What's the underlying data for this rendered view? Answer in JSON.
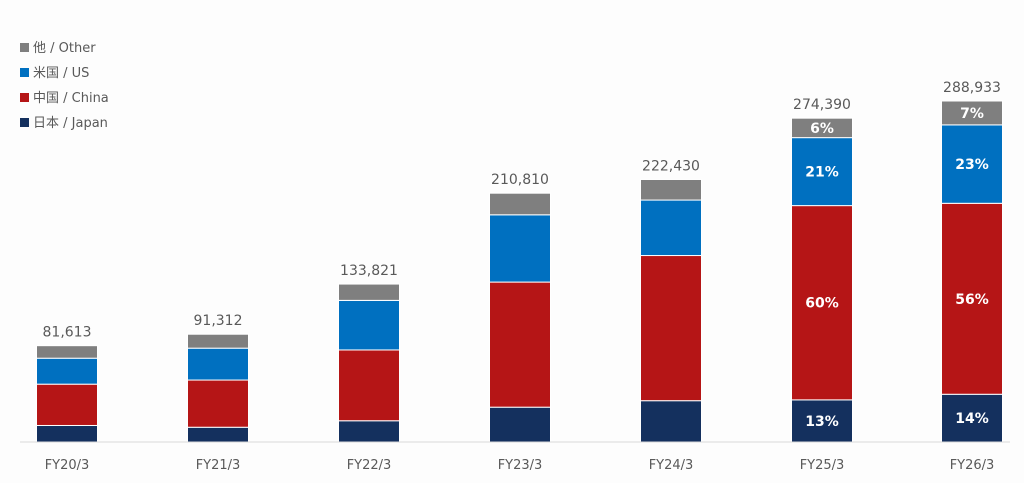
{
  "chart_data": {
    "type": "bar",
    "stacked": true,
    "categories": [
      "FY20/3",
      "FY21/3",
      "FY22/3",
      "FY23/3",
      "FY24/3",
      "FY25/3",
      "FY26/3"
    ],
    "totals": [
      81613,
      91312,
      133821,
      210810,
      222430,
      274390,
      288933
    ],
    "total_labels": [
      "81,613",
      "91,312",
      "133,821",
      "210,810",
      "222,430",
      "274,390",
      "288,933"
    ],
    "series": [
      {
        "name": "日本 / Japan",
        "color": "#14305e",
        "values": [
          14000,
          12500,
          18000,
          29500,
          35000,
          35700,
          40450
        ],
        "data_labels": [
          "",
          "",
          "",
          "",
          "",
          "13%",
          "14%"
        ]
      },
      {
        "name": "中国 / China",
        "color": "#b51516",
        "values": [
          35000,
          40000,
          60000,
          106000,
          123000,
          164600,
          161800
        ],
        "data_labels": [
          "",
          "",
          "",
          "",
          "",
          "60%",
          "56%"
        ]
      },
      {
        "name": "米国 / US",
        "color": "#0070c0",
        "values": [
          22000,
          27000,
          42000,
          57000,
          47000,
          57600,
          66450
        ],
        "data_labels": [
          "",
          "",
          "",
          "",
          "",
          "21%",
          "23%"
        ]
      },
      {
        "name": "他 / Other",
        "color": "#7f7f7f",
        "values": [
          10613,
          11812,
          13821,
          18310,
          17430,
          16490,
          20233
        ],
        "data_labels": [
          "",
          "",
          "",
          "",
          "",
          "6%",
          "7%"
        ]
      }
    ],
    "legend_position": "top-left",
    "ylim": [
      0,
      300000
    ],
    "grid": false,
    "title": "",
    "xlabel": "",
    "ylabel": ""
  }
}
